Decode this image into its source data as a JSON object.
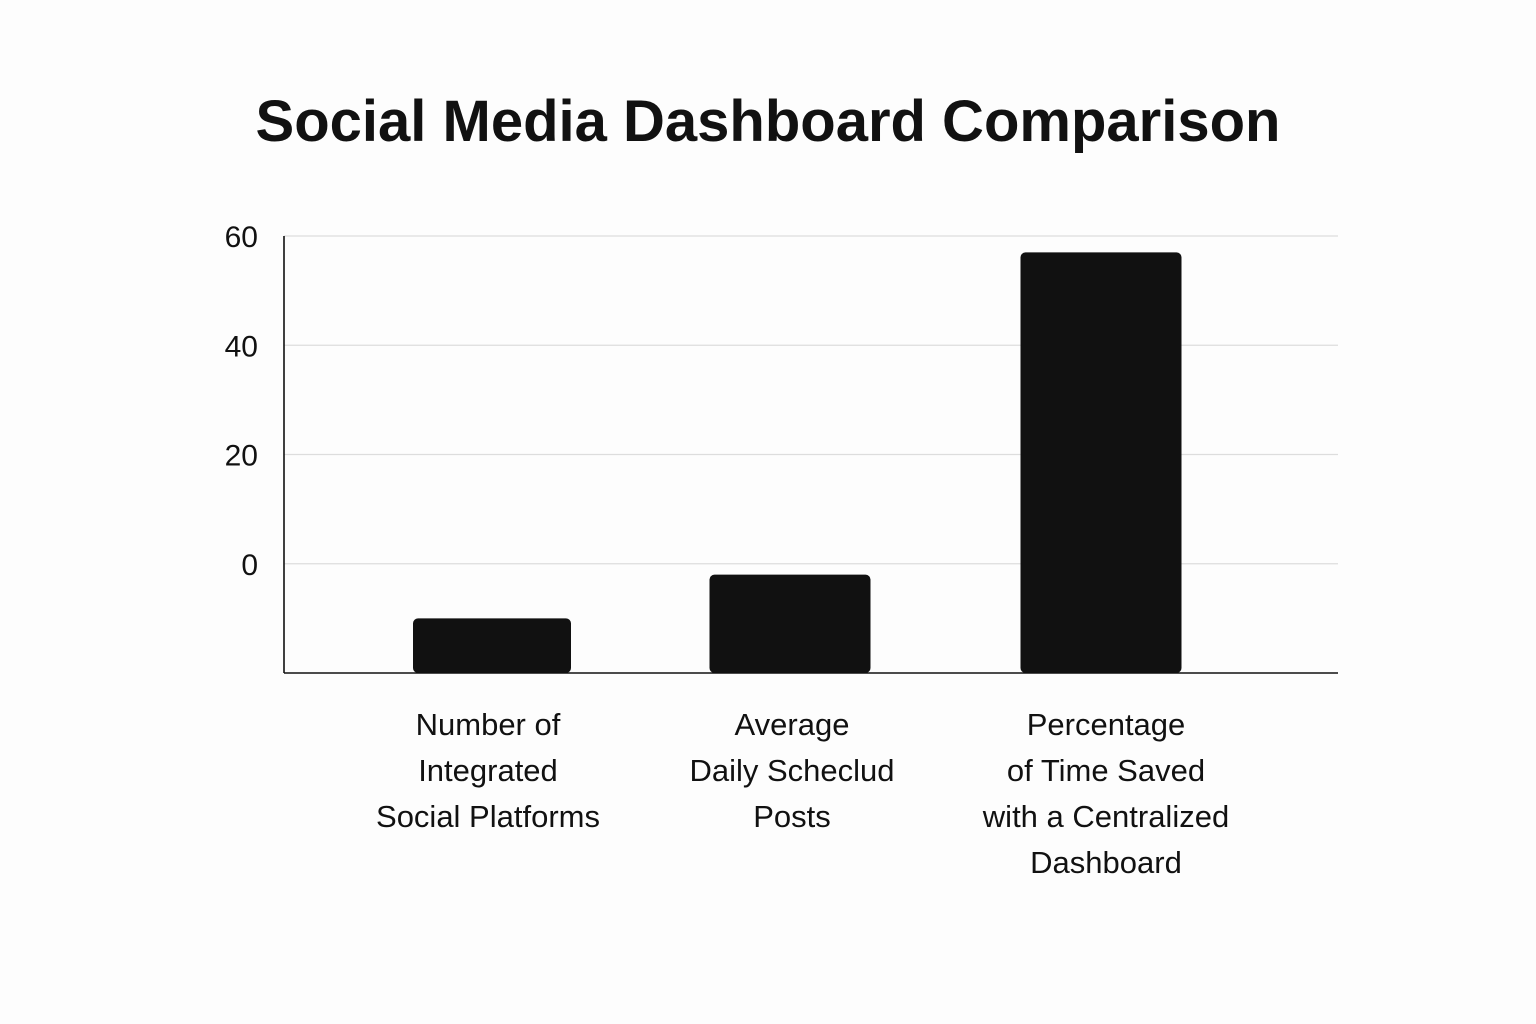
{
  "chart_data": {
    "type": "bar",
    "title": "Social Media Dashboard Comparison",
    "xlabel": "",
    "ylabel": "",
    "categories": [
      "Number of Integrated Social Platforms",
      "Average Daily Scheclud Posts",
      "Percentage of Time Saved with a Centralized Dashboard"
    ],
    "category_lines": [
      [
        "Number of",
        "Integrated",
        "Social Platforms"
      ],
      [
        "Average",
        "Daily Scheclud",
        "Posts"
      ],
      [
        "Percentage",
        "of Time Saved",
        "with a Centralized",
        "Dashboard"
      ]
    ],
    "values": [
      -10,
      -2,
      57
    ],
    "ylim": [
      -20,
      60
    ],
    "yticks": [
      0,
      20,
      40,
      60
    ],
    "ytick_labels": [
      "0",
      "20",
      "40",
      "60"
    ],
    "grid": true,
    "legend": "none",
    "bar_color": "#111111",
    "grid_color": "#dddddd",
    "axis_color": "#111111"
  }
}
